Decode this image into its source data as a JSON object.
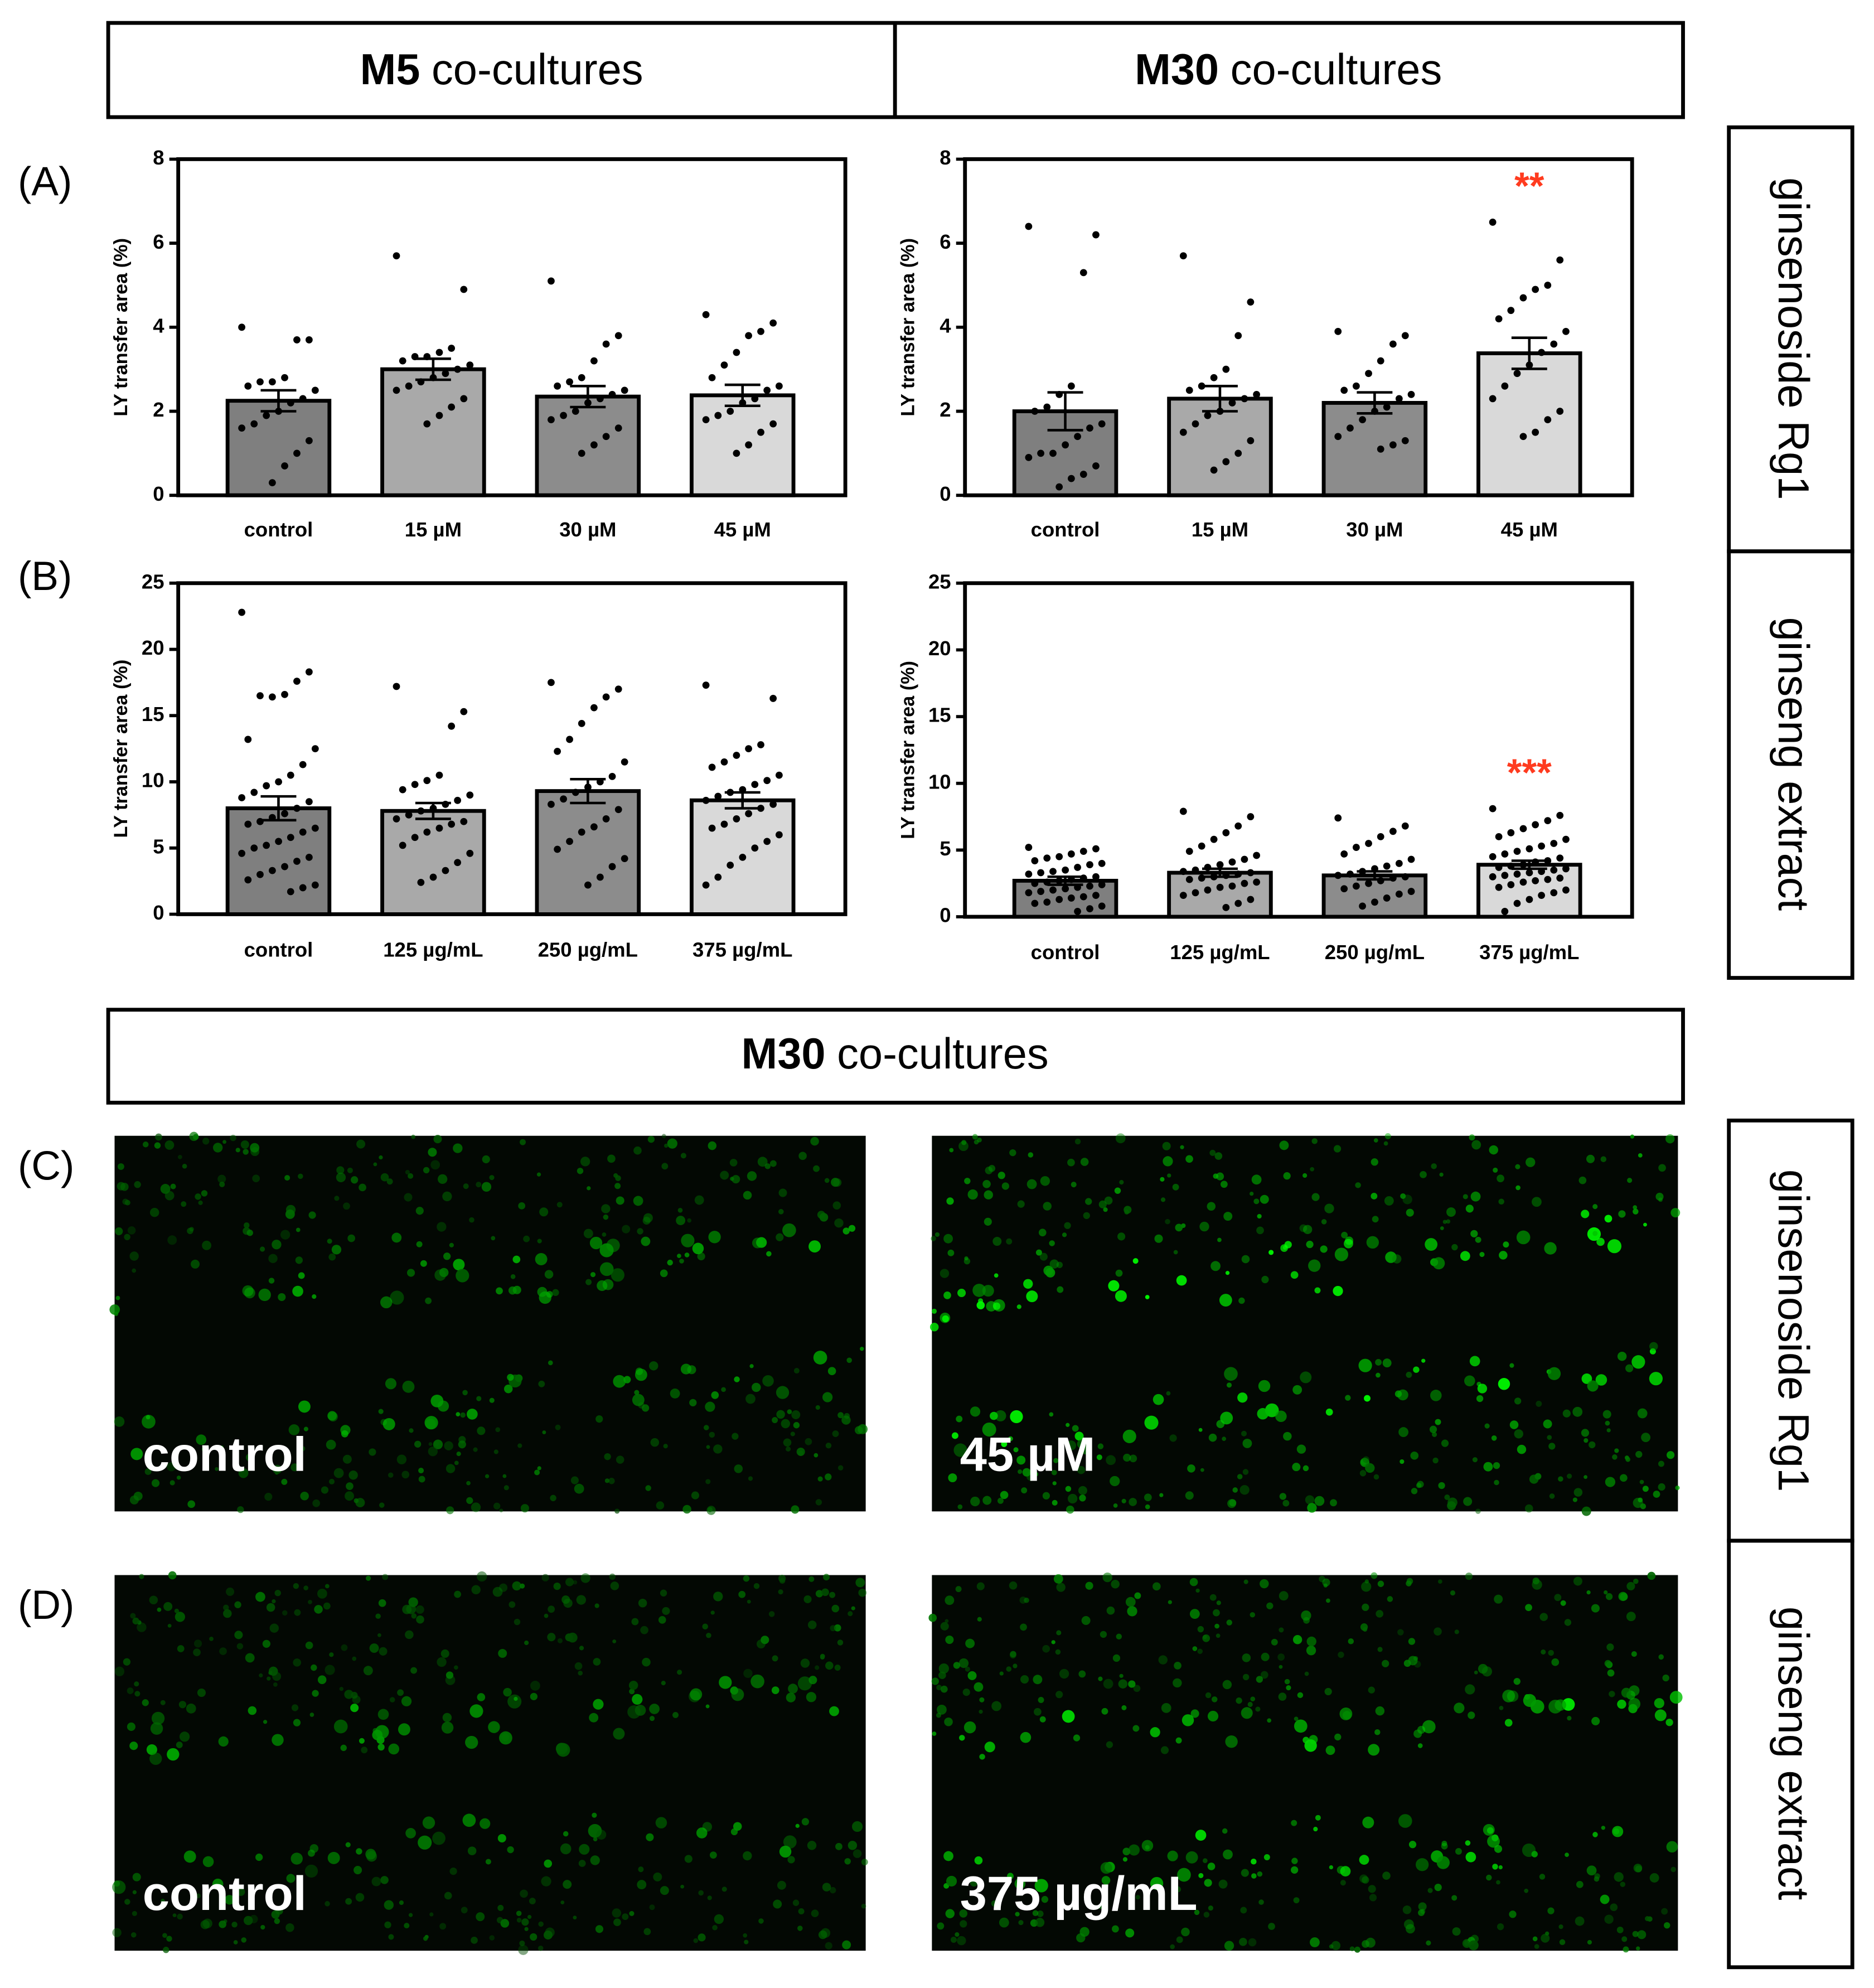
{
  "headers": [
    {
      "bold": "M5",
      "text": "co-cultures"
    },
    {
      "bold": "M30",
      "text": "co-cultures"
    }
  ],
  "side_labels": {
    "charts": [
      "ginsenoside Rg1",
      "ginseng extract"
    ],
    "images": [
      "ginsenoside Rg1",
      "ginseng extract"
    ]
  },
  "panel_labels": [
    "(A)",
    "(B)",
    "(C)",
    "(D)"
  ],
  "chart_data": [
    {
      "type": "bar",
      "ylabel": "LY transfer area (%)",
      "categories": [
        "control",
        "15 µM",
        "30 µM",
        "45 µM"
      ],
      "values": [
        2.25,
        3.0,
        2.35,
        2.38
      ],
      "errors": [
        0.25,
        0.25,
        0.25,
        0.25
      ],
      "colors": [
        "#7f7f7f",
        "#a9a9a9",
        "#8c8c8c",
        "#d9d9d9"
      ],
      "points": [
        [
          4.0,
          3.7,
          3.7,
          2.8,
          2.7,
          2.7,
          2.6,
          2.5,
          2.3,
          2.2,
          2.0,
          1.9,
          1.7,
          1.6,
          1.3,
          1.0,
          0.7,
          0.3
        ],
        [
          5.7,
          4.9,
          3.5,
          3.4,
          3.3,
          3.3,
          3.2,
          3.1,
          3.0,
          2.9,
          2.8,
          2.7,
          2.6,
          2.5,
          2.3,
          2.1,
          1.9,
          1.7
        ],
        [
          5.1,
          3.8,
          3.6,
          3.2,
          2.8,
          2.7,
          2.6,
          2.5,
          2.4,
          2.3,
          2.2,
          2.0,
          1.9,
          1.8,
          1.6,
          1.4,
          1.2,
          1.0
        ],
        [
          4.3,
          4.1,
          3.9,
          3.8,
          3.4,
          3.1,
          2.8,
          2.6,
          2.5,
          2.3,
          2.2,
          2.0,
          1.9,
          1.8,
          1.7,
          1.5,
          1.2,
          1.0
        ]
      ],
      "ylim": [
        0,
        8
      ],
      "yticks": [
        0,
        2,
        4,
        6,
        8
      ]
    },
    {
      "type": "bar",
      "ylabel": "LY transfer area (%)",
      "categories": [
        "control",
        "15 µM",
        "30 µM",
        "45 µM"
      ],
      "values": [
        2.0,
        2.3,
        2.2,
        3.38
      ],
      "errors": [
        0.45,
        0.3,
        0.25,
        0.37
      ],
      "colors": [
        "#7f7f7f",
        "#a9a9a9",
        "#8c8c8c",
        "#d9d9d9"
      ],
      "points": [
        [
          6.4,
          6.2,
          5.3,
          2.6,
          2.4,
          2.1,
          2.0,
          1.7,
          1.6,
          1.4,
          1.2,
          1.0,
          1.0,
          0.9,
          0.7,
          0.5,
          0.4,
          0.2
        ],
        [
          5.7,
          4.6,
          3.8,
          3.0,
          2.8,
          2.6,
          2.5,
          2.4,
          2.3,
          2.2,
          2.0,
          1.9,
          1.7,
          1.5,
          1.3,
          1.0,
          0.8,
          0.6
        ],
        [
          3.9,
          3.8,
          3.6,
          3.2,
          2.9,
          2.6,
          2.5,
          2.4,
          2.3,
          2.1,
          2.0,
          1.8,
          1.6,
          1.4,
          1.3,
          1.2,
          1.1
        ],
        [
          6.5,
          5.6,
          5.0,
          4.9,
          4.7,
          4.4,
          4.2,
          3.9,
          3.6,
          3.4,
          3.1,
          2.9,
          2.6,
          2.3,
          2.0,
          1.8,
          1.5,
          1.4
        ]
      ],
      "significance": [
        null,
        null,
        null,
        "**"
      ],
      "ylim": [
        0,
        8
      ],
      "yticks": [
        0,
        2,
        4,
        6,
        8
      ]
    },
    {
      "type": "bar",
      "ylabel": "LY transfer area (%)",
      "categories": [
        "control",
        "125 µg/mL",
        "250 µg/mL",
        "375 µg/mL"
      ],
      "values": [
        8.0,
        7.8,
        9.3,
        8.6
      ],
      "errors": [
        0.9,
        0.6,
        0.9,
        0.6
      ],
      "colors": [
        "#7f7f7f",
        "#a9a9a9",
        "#8c8c8c",
        "#d9d9d9"
      ],
      "points": [
        [
          22.8,
          18.3,
          17.6,
          16.6,
          16.4,
          16.5,
          13.2,
          12.5,
          11.3,
          10.5,
          10.0,
          9.7,
          9.2,
          8.8,
          8.5,
          8.0,
          7.6,
          7.3,
          7.0,
          6.8,
          6.5,
          6.2,
          5.8,
          5.5,
          5.2,
          5.0,
          4.6,
          4.3,
          4.0,
          3.6,
          3.3,
          3.0,
          2.6,
          2.2,
          2.0,
          1.7
        ],
        [
          17.2,
          15.3,
          14.2,
          10.5,
          10.1,
          9.8,
          9.4,
          9.0,
          8.6,
          8.3,
          8.0,
          7.8,
          7.5,
          7.2,
          7.0,
          6.8,
          6.5,
          6.2,
          5.8,
          5.2,
          4.6,
          3.9,
          3.3,
          2.8,
          2.4
        ],
        [
          17.5,
          17.0,
          16.4,
          15.6,
          14.4,
          13.2,
          12.3,
          11.5,
          10.4,
          10.0,
          9.6,
          9.2,
          8.7,
          8.3,
          7.9,
          7.2,
          6.6,
          6.2,
          5.5,
          4.9,
          4.2,
          3.6,
          2.8,
          2.2
        ],
        [
          17.3,
          16.3,
          12.8,
          12.5,
          12.0,
          11.5,
          11.1,
          10.5,
          10.1,
          9.8,
          9.4,
          9.2,
          8.9,
          8.6,
          8.3,
          8.0,
          7.6,
          7.2,
          6.8,
          6.5,
          6.0,
          5.5,
          5.0,
          4.3,
          3.7,
          2.8,
          2.2
        ]
      ],
      "ylim": [
        0,
        25
      ],
      "yticks": [
        0,
        5,
        10,
        15,
        20,
        25
      ]
    },
    {
      "type": "bar",
      "ylabel": "LY transfer area (%)",
      "categories": [
        "control",
        "125 µg/mL",
        "250 µg/mL",
        "375 µg/mL"
      ],
      "values": [
        2.7,
        3.3,
        3.1,
        3.9
      ],
      "errors": [
        0.3,
        0.3,
        0.3,
        0.3
      ],
      "colors": [
        "#7f7f7f",
        "#a9a9a9",
        "#8c8c8c",
        "#d9d9d9"
      ],
      "points": [
        [
          5.2,
          5.1,
          4.9,
          4.7,
          4.5,
          4.4,
          4.2,
          4.0,
          3.9,
          3.7,
          3.5,
          3.4,
          3.3,
          3.2,
          3.0,
          2.9,
          2.8,
          2.7,
          2.6,
          2.5,
          2.4,
          2.3,
          2.2,
          2.1,
          2.0,
          1.9,
          1.8,
          1.6,
          1.5,
          1.4,
          1.3,
          1.1,
          1.0,
          0.8,
          0.6,
          0.4
        ],
        [
          7.9,
          7.5,
          6.8,
          6.3,
          5.8,
          5.3,
          4.9,
          4.6,
          4.3,
          4.1,
          3.9,
          3.7,
          3.5,
          3.4,
          3.3,
          3.2,
          3.1,
          3.0,
          2.9,
          2.8,
          2.6,
          2.5,
          2.3,
          2.2,
          2.0,
          1.8,
          1.6,
          1.3,
          1.0,
          0.7
        ],
        [
          7.4,
          6.8,
          6.4,
          6.0,
          5.5,
          5.2,
          4.7,
          4.3,
          4.0,
          3.8,
          3.6,
          3.4,
          3.2,
          3.1,
          3.0,
          2.9,
          2.7,
          2.5,
          2.3,
          2.1,
          1.9,
          1.7,
          1.4,
          1.1,
          0.8
        ],
        [
          8.1,
          7.6,
          7.2,
          6.9,
          6.6,
          6.3,
          6.0,
          5.8,
          5.5,
          5.3,
          5.1,
          4.9,
          4.7,
          4.5,
          4.4,
          4.2,
          4.1,
          3.9,
          3.8,
          3.7,
          3.6,
          3.5,
          3.4,
          3.3,
          3.2,
          3.1,
          3.0,
          2.9,
          2.8,
          2.7,
          2.6,
          2.4,
          2.2,
          2.0,
          1.8,
          1.6,
          1.3,
          1.0,
          0.4
        ]
      ],
      "significance": [
        null,
        null,
        null,
        "***"
      ],
      "ylim": [
        0,
        25
      ],
      "yticks": [
        0,
        5,
        10,
        15,
        20,
        25
      ]
    }
  ],
  "images": {
    "header": {
      "bold": "M30",
      "text": "co-cultures"
    },
    "labels": [
      "control",
      "45 µM",
      "control",
      "375 µg/mL"
    ]
  }
}
